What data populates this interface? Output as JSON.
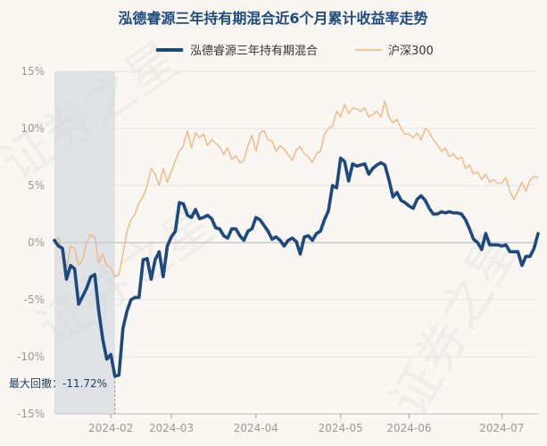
{
  "colors": {
    "fund": "#1c4a7f",
    "index": "#f0b27a",
    "title": "#1c4a7f",
    "grid": "#e6e2dc",
    "zero": "#c8c8c8",
    "tick": "#999999",
    "drawdown_fill": "#c9d3dd",
    "watermark": "#bbbbbb"
  },
  "watermark": [
    "证券之星",
    "证券之星",
    "证券之星"
  ],
  "chart_data": {
    "type": "line",
    "title": "泓德睿源三年持有期混合近6个月累计收益率走势",
    "xlabel": "",
    "ylabel": "",
    "ylim": [
      -15,
      15
    ],
    "yticks": [
      15,
      10,
      5,
      0,
      -5,
      -10,
      -15
    ],
    "ytick_labels": [
      "15%",
      "10%",
      "5%",
      "0%",
      "-5%",
      "-10%",
      "-15%"
    ],
    "x_range": [
      0,
      120
    ],
    "x_ticks": [
      {
        "x": 14,
        "label": "2024-02"
      },
      {
        "x": 29,
        "label": "2024-03"
      },
      {
        "x": 50,
        "label": "2024-04"
      },
      {
        "x": 71,
        "label": "2024-05"
      },
      {
        "x": 88,
        "label": "2024-06"
      },
      {
        "x": 111,
        "label": "2024-07"
      }
    ],
    "legend": {
      "position": "top-center"
    },
    "series": [
      {
        "name": "泓德睿源三年持有期混合",
        "key": "fund",
        "points": [
          [
            0,
            0.2
          ],
          [
            1,
            -0.3
          ],
          [
            2,
            -0.5
          ],
          [
            3,
            -3.2
          ],
          [
            4,
            -2.0
          ],
          [
            5,
            -2.3
          ],
          [
            6,
            -5.4
          ],
          [
            7,
            -4.7
          ],
          [
            8,
            -4.0
          ],
          [
            9,
            -3.0
          ],
          [
            10,
            -2.8
          ],
          [
            11,
            -6.0
          ],
          [
            12,
            -8.5
          ],
          [
            13,
            -10.2
          ],
          [
            14,
            -9.8
          ],
          [
            15,
            -11.7
          ],
          [
            16,
            -11.6
          ],
          [
            17,
            -7.5
          ],
          [
            18,
            -6.0
          ],
          [
            19,
            -5.0
          ],
          [
            20,
            -4.8
          ],
          [
            21,
            -4.8
          ],
          [
            22,
            -1.5
          ],
          [
            23,
            -1.4
          ],
          [
            24,
            -3.2
          ],
          [
            25,
            -1.5
          ],
          [
            26,
            -0.8
          ],
          [
            27,
            -3.0
          ],
          [
            28,
            -0.3
          ],
          [
            29,
            0.5
          ],
          [
            30,
            1.0
          ],
          [
            31,
            3.5
          ],
          [
            32,
            3.4
          ],
          [
            33,
            2.4
          ],
          [
            34,
            2.2
          ],
          [
            35,
            2.9
          ],
          [
            36,
            2.1
          ],
          [
            37,
            2.2
          ],
          [
            38,
            2.4
          ],
          [
            39,
            2.1
          ],
          [
            40,
            1.3
          ],
          [
            41,
            1.2
          ],
          [
            42,
            0.6
          ],
          [
            43,
            0.4
          ],
          [
            44,
            1.2
          ],
          [
            45,
            1.2
          ],
          [
            46,
            0.6
          ],
          [
            47,
            0.2
          ],
          [
            48,
            1.0
          ],
          [
            49,
            1.2
          ],
          [
            50,
            2.2
          ],
          [
            51,
            2.0
          ],
          [
            52,
            1.5
          ],
          [
            53,
            1.0
          ],
          [
            54,
            0.3
          ],
          [
            55,
            0.5
          ],
          [
            56,
            0.2
          ],
          [
            57,
            -0.3
          ],
          [
            58,
            0.2
          ],
          [
            59,
            0.4
          ],
          [
            60,
            0.1
          ],
          [
            61,
            -1.0
          ],
          [
            62,
            0.5
          ],
          [
            63,
            0.6
          ],
          [
            64,
            0.2
          ],
          [
            65,
            0.8
          ],
          [
            66,
            1.0
          ],
          [
            67,
            2.0
          ],
          [
            68,
            2.8
          ],
          [
            69,
            5.0
          ],
          [
            70,
            4.8
          ],
          [
            71,
            7.4
          ],
          [
            72,
            7.1
          ],
          [
            73,
            5.4
          ],
          [
            74,
            6.9
          ],
          [
            75,
            6.7
          ],
          [
            76,
            6.8
          ],
          [
            77,
            6.9
          ],
          [
            78,
            6.0
          ],
          [
            79,
            6.5
          ],
          [
            80,
            6.8
          ],
          [
            81,
            7.0
          ],
          [
            82,
            6.8
          ],
          [
            83,
            5.5
          ],
          [
            84,
            4.0
          ],
          [
            85,
            4.4
          ],
          [
            86,
            3.7
          ],
          [
            87,
            3.5
          ],
          [
            88,
            3.2
          ],
          [
            89,
            3.0
          ],
          [
            90,
            3.8
          ],
          [
            91,
            4.1
          ],
          [
            92,
            3.7
          ],
          [
            93,
            3.0
          ],
          [
            94,
            2.5
          ],
          [
            95,
            2.5
          ],
          [
            96,
            2.7
          ],
          [
            97,
            2.6
          ],
          [
            98,
            2.7
          ],
          [
            99,
            2.6
          ],
          [
            100,
            2.6
          ],
          [
            101,
            2.5
          ],
          [
            102,
            2.0
          ],
          [
            103,
            1.2
          ],
          [
            104,
            0.3
          ],
          [
            105,
            0.0
          ],
          [
            106,
            -0.6
          ],
          [
            107,
            0.8
          ],
          [
            108,
            -0.2
          ],
          [
            109,
            -0.2
          ],
          [
            110,
            -0.2
          ],
          [
            111,
            -0.3
          ],
          [
            112,
            -0.2
          ],
          [
            113,
            -0.8
          ],
          [
            114,
            -0.8
          ],
          [
            115,
            -0.8
          ],
          [
            116,
            -2.0
          ],
          [
            117,
            -1.2
          ],
          [
            118,
            -1.2
          ],
          [
            119,
            -0.5
          ],
          [
            120,
            0.8
          ]
        ]
      },
      {
        "name": "沪深300",
        "key": "index",
        "points": [
          [
            0,
            0.0
          ],
          [
            1,
            0.5
          ],
          [
            2,
            -1.0
          ],
          [
            3,
            -2.2
          ],
          [
            4,
            -0.3
          ],
          [
            5,
            -0.5
          ],
          [
            6,
            -2.0
          ],
          [
            7,
            -1.5
          ],
          [
            8,
            0.0
          ],
          [
            9,
            0.7
          ],
          [
            10,
            0.5
          ],
          [
            11,
            -1.8
          ],
          [
            12,
            -1.0
          ],
          [
            13,
            -2.0
          ],
          [
            14,
            -2.2
          ],
          [
            15,
            -3.0
          ],
          [
            16,
            -2.8
          ],
          [
            17,
            -1.0
          ],
          [
            18,
            1.0
          ],
          [
            19,
            2.0
          ],
          [
            20,
            2.5
          ],
          [
            21,
            3.5
          ],
          [
            22,
            4.0
          ],
          [
            23,
            5.0
          ],
          [
            24,
            6.5
          ],
          [
            25,
            6.0
          ],
          [
            26,
            5.0
          ],
          [
            27,
            6.5
          ],
          [
            28,
            5.3
          ],
          [
            29,
            6.2
          ],
          [
            30,
            7.2
          ],
          [
            31,
            8.0
          ],
          [
            32,
            8.5
          ],
          [
            33,
            9.8
          ],
          [
            34,
            8.3
          ],
          [
            35,
            9.6
          ],
          [
            36,
            9.2
          ],
          [
            37,
            9.5
          ],
          [
            38,
            8.5
          ],
          [
            39,
            9.0
          ],
          [
            40,
            8.7
          ],
          [
            41,
            8.4
          ],
          [
            42,
            7.7
          ],
          [
            43,
            8.3
          ],
          [
            44,
            7.3
          ],
          [
            45,
            7.6
          ],
          [
            46,
            7.0
          ],
          [
            47,
            7.2
          ],
          [
            48,
            8.5
          ],
          [
            49,
            9.4
          ],
          [
            50,
            8.0
          ],
          [
            51,
            9.6
          ],
          [
            52,
            9.8
          ],
          [
            53,
            9.0
          ],
          [
            54,
            8.9
          ],
          [
            55,
            8.0
          ],
          [
            56,
            8.5
          ],
          [
            57,
            8.2
          ],
          [
            58,
            7.7
          ],
          [
            59,
            7.2
          ],
          [
            60,
            8.1
          ],
          [
            61,
            8.4
          ],
          [
            62,
            7.8
          ],
          [
            63,
            7.5
          ],
          [
            64,
            7.0
          ],
          [
            65,
            7.8
          ],
          [
            66,
            8.0
          ],
          [
            67,
            9.5
          ],
          [
            68,
            10.0
          ],
          [
            69,
            10.2
          ],
          [
            70,
            11.5
          ],
          [
            71,
            11.0
          ],
          [
            72,
            12.1
          ],
          [
            73,
            11.3
          ],
          [
            74,
            11.8
          ],
          [
            75,
            11.7
          ],
          [
            76,
            11.5
          ],
          [
            77,
            11.8
          ],
          [
            78,
            11.0
          ],
          [
            79,
            11.2
          ],
          [
            80,
            11.5
          ],
          [
            81,
            11.0
          ],
          [
            82,
            12.4
          ],
          [
            83,
            11.0
          ],
          [
            84,
            10.5
          ],
          [
            85,
            10.8
          ],
          [
            86,
            10.0
          ],
          [
            87,
            9.5
          ],
          [
            88,
            9.5
          ],
          [
            89,
            9.2
          ],
          [
            90,
            9.6
          ],
          [
            91,
            9.0
          ],
          [
            92,
            10.0
          ],
          [
            93,
            9.7
          ],
          [
            94,
            9.0
          ],
          [
            95,
            8.6
          ],
          [
            96,
            8.0
          ],
          [
            97,
            8.3
          ],
          [
            98,
            7.5
          ],
          [
            99,
            7.8
          ],
          [
            100,
            7.3
          ],
          [
            101,
            7.5
          ],
          [
            102,
            6.5
          ],
          [
            103,
            6.8
          ],
          [
            104,
            6.0
          ],
          [
            105,
            6.2
          ],
          [
            106,
            5.5
          ],
          [
            107,
            6.0
          ],
          [
            108,
            5.3
          ],
          [
            109,
            5.5
          ],
          [
            110,
            5.2
          ],
          [
            111,
            5.2
          ],
          [
            112,
            5.7
          ],
          [
            113,
            4.5
          ],
          [
            114,
            3.8
          ],
          [
            115,
            4.5
          ],
          [
            116,
            5.3
          ],
          [
            117,
            4.5
          ],
          [
            118,
            5.5
          ],
          [
            119,
            5.8
          ],
          [
            120,
            5.7
          ]
        ]
      }
    ],
    "max_drawdown": {
      "label": "最大回撤：-11.72%",
      "start_x": 0,
      "end_x": 15,
      "value": -11.72
    }
  }
}
